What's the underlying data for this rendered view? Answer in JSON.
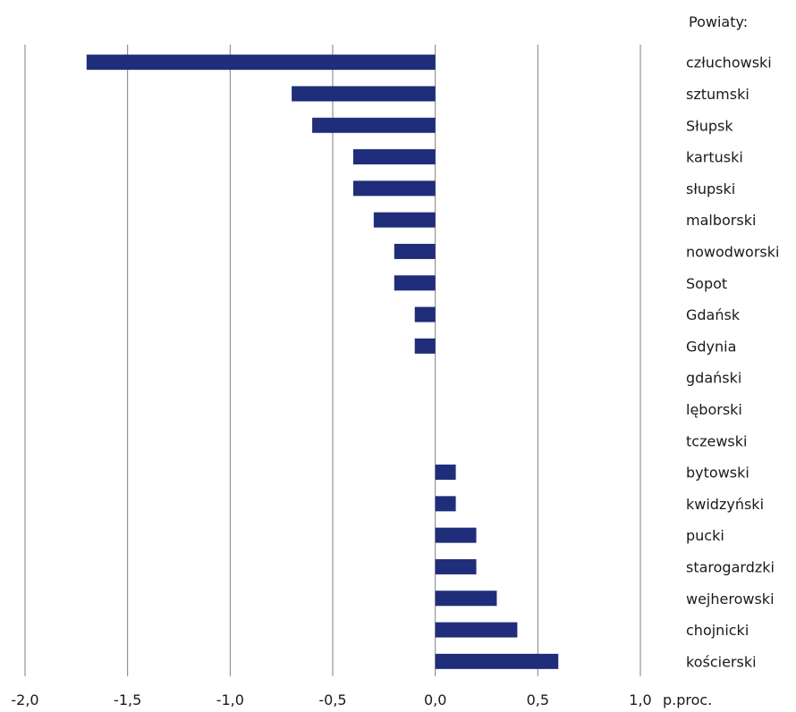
{
  "chart_data": {
    "type": "bar",
    "orientation": "horizontal",
    "legend_title": "Powiaty:",
    "unit_label": "p.proc.",
    "bar_color": "#1f2d7b",
    "grid": true,
    "xlim": [
      -2.0,
      1.0
    ],
    "xticks": [
      -2.0,
      -1.5,
      -1.0,
      -0.5,
      0.0,
      0.5,
      1.0
    ],
    "xtick_labels": [
      "-2,0",
      "-1,5",
      "-1,0",
      "-0,5",
      "0,0",
      "0,5",
      "1,0"
    ],
    "categories": [
      "człuchowski",
      "sztumski",
      "Słupsk",
      "kartuski",
      "słupski",
      "malborski",
      "nowodworski",
      "Sopot",
      "Gdańsk",
      "Gdynia",
      "gdański",
      "lęborski",
      "tczewski",
      "bytowski",
      "kwidzyński",
      "pucki",
      "starogardzki",
      "wejherowski",
      "chojnicki",
      "kościerski"
    ],
    "values": [
      -1.7,
      -0.7,
      -0.6,
      -0.4,
      -0.4,
      -0.3,
      -0.2,
      -0.2,
      -0.1,
      -0.1,
      0.0,
      0.0,
      0.0,
      0.1,
      0.1,
      0.2,
      0.2,
      0.3,
      0.4,
      0.6
    ]
  }
}
